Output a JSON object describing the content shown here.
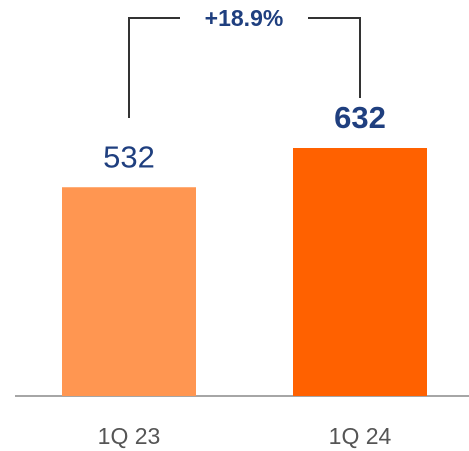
{
  "chart_data": {
    "type": "bar",
    "categories": [
      "1Q 23",
      "1Q 24"
    ],
    "values": [
      532,
      632
    ],
    "colors": [
      "#ff9651",
      "#ff6100"
    ],
    "annotation": "+18.9%"
  }
}
